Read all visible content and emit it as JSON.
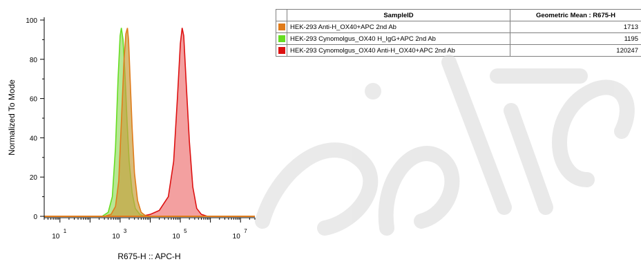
{
  "chart_data": {
    "type": "area",
    "xlabel": "R675-H :: APC-H",
    "ylabel": "Normalized To Mode",
    "xscale": "log",
    "xlim": [
      3,
      30000000
    ],
    "ylim": [
      0,
      100
    ],
    "yticks": [
      "0",
      "20",
      "40",
      "60",
      "80",
      "100"
    ],
    "xticks": [
      {
        "base": "10",
        "exp": "1"
      },
      {
        "base": "10",
        "exp": "3"
      },
      {
        "base": "10",
        "exp": "5"
      },
      {
        "base": "10",
        "exp": "7"
      }
    ],
    "series": [
      {
        "name": "HEK-293 Anti-H_OX40+APC 2nd Ab",
        "geometric_mean": "1713",
        "color": "#e07b1a",
        "fill": "#c8a040",
        "points": [
          [
            300,
            0
          ],
          [
            500,
            1
          ],
          [
            700,
            5
          ],
          [
            900,
            18
          ],
          [
            1100,
            48
          ],
          [
            1350,
            80
          ],
          [
            1550,
            93
          ],
          [
            1750,
            96
          ],
          [
            1900,
            90
          ],
          [
            2150,
            70
          ],
          [
            2500,
            45
          ],
          [
            3000,
            22
          ],
          [
            3800,
            8
          ],
          [
            5000,
            2
          ],
          [
            7000,
            0.3
          ],
          [
            10000,
            0
          ]
        ]
      },
      {
        "name": "HEK-293 Cynomolgus_OX40 H_IgG+APC 2nd Ab",
        "geometric_mean": "1195",
        "color": "#66dd22",
        "fill": "#99dd66",
        "points": [
          [
            250,
            0
          ],
          [
            400,
            2
          ],
          [
            550,
            10
          ],
          [
            700,
            35
          ],
          [
            850,
            70
          ],
          [
            1000,
            92
          ],
          [
            1100,
            96
          ],
          [
            1250,
            90
          ],
          [
            1450,
            72
          ],
          [
            1700,
            48
          ],
          [
            2000,
            28
          ],
          [
            2500,
            12
          ],
          [
            3200,
            4
          ],
          [
            4500,
            1
          ],
          [
            6500,
            0
          ]
        ]
      },
      {
        "name": "HEK-293 Cynomolgus_OX40 Anti-H_OX40+APC 2nd Ab",
        "geometric_mean": "120247",
        "color": "#dd1111",
        "fill": "#ee7777",
        "points": [
          [
            5000,
            0
          ],
          [
            10000,
            1
          ],
          [
            20000,
            3
          ],
          [
            40000,
            10
          ],
          [
            60000,
            28
          ],
          [
            80000,
            60
          ],
          [
            100000,
            88
          ],
          [
            115000,
            96
          ],
          [
            130000,
            92
          ],
          [
            160000,
            65
          ],
          [
            200000,
            38
          ],
          [
            260000,
            15
          ],
          [
            350000,
            4
          ],
          [
            500000,
            1
          ],
          [
            800000,
            0
          ]
        ]
      }
    ],
    "table_header": {
      "swatch": "",
      "sample": "SampleID",
      "mean": "Geometric Mean : R675-H"
    }
  }
}
